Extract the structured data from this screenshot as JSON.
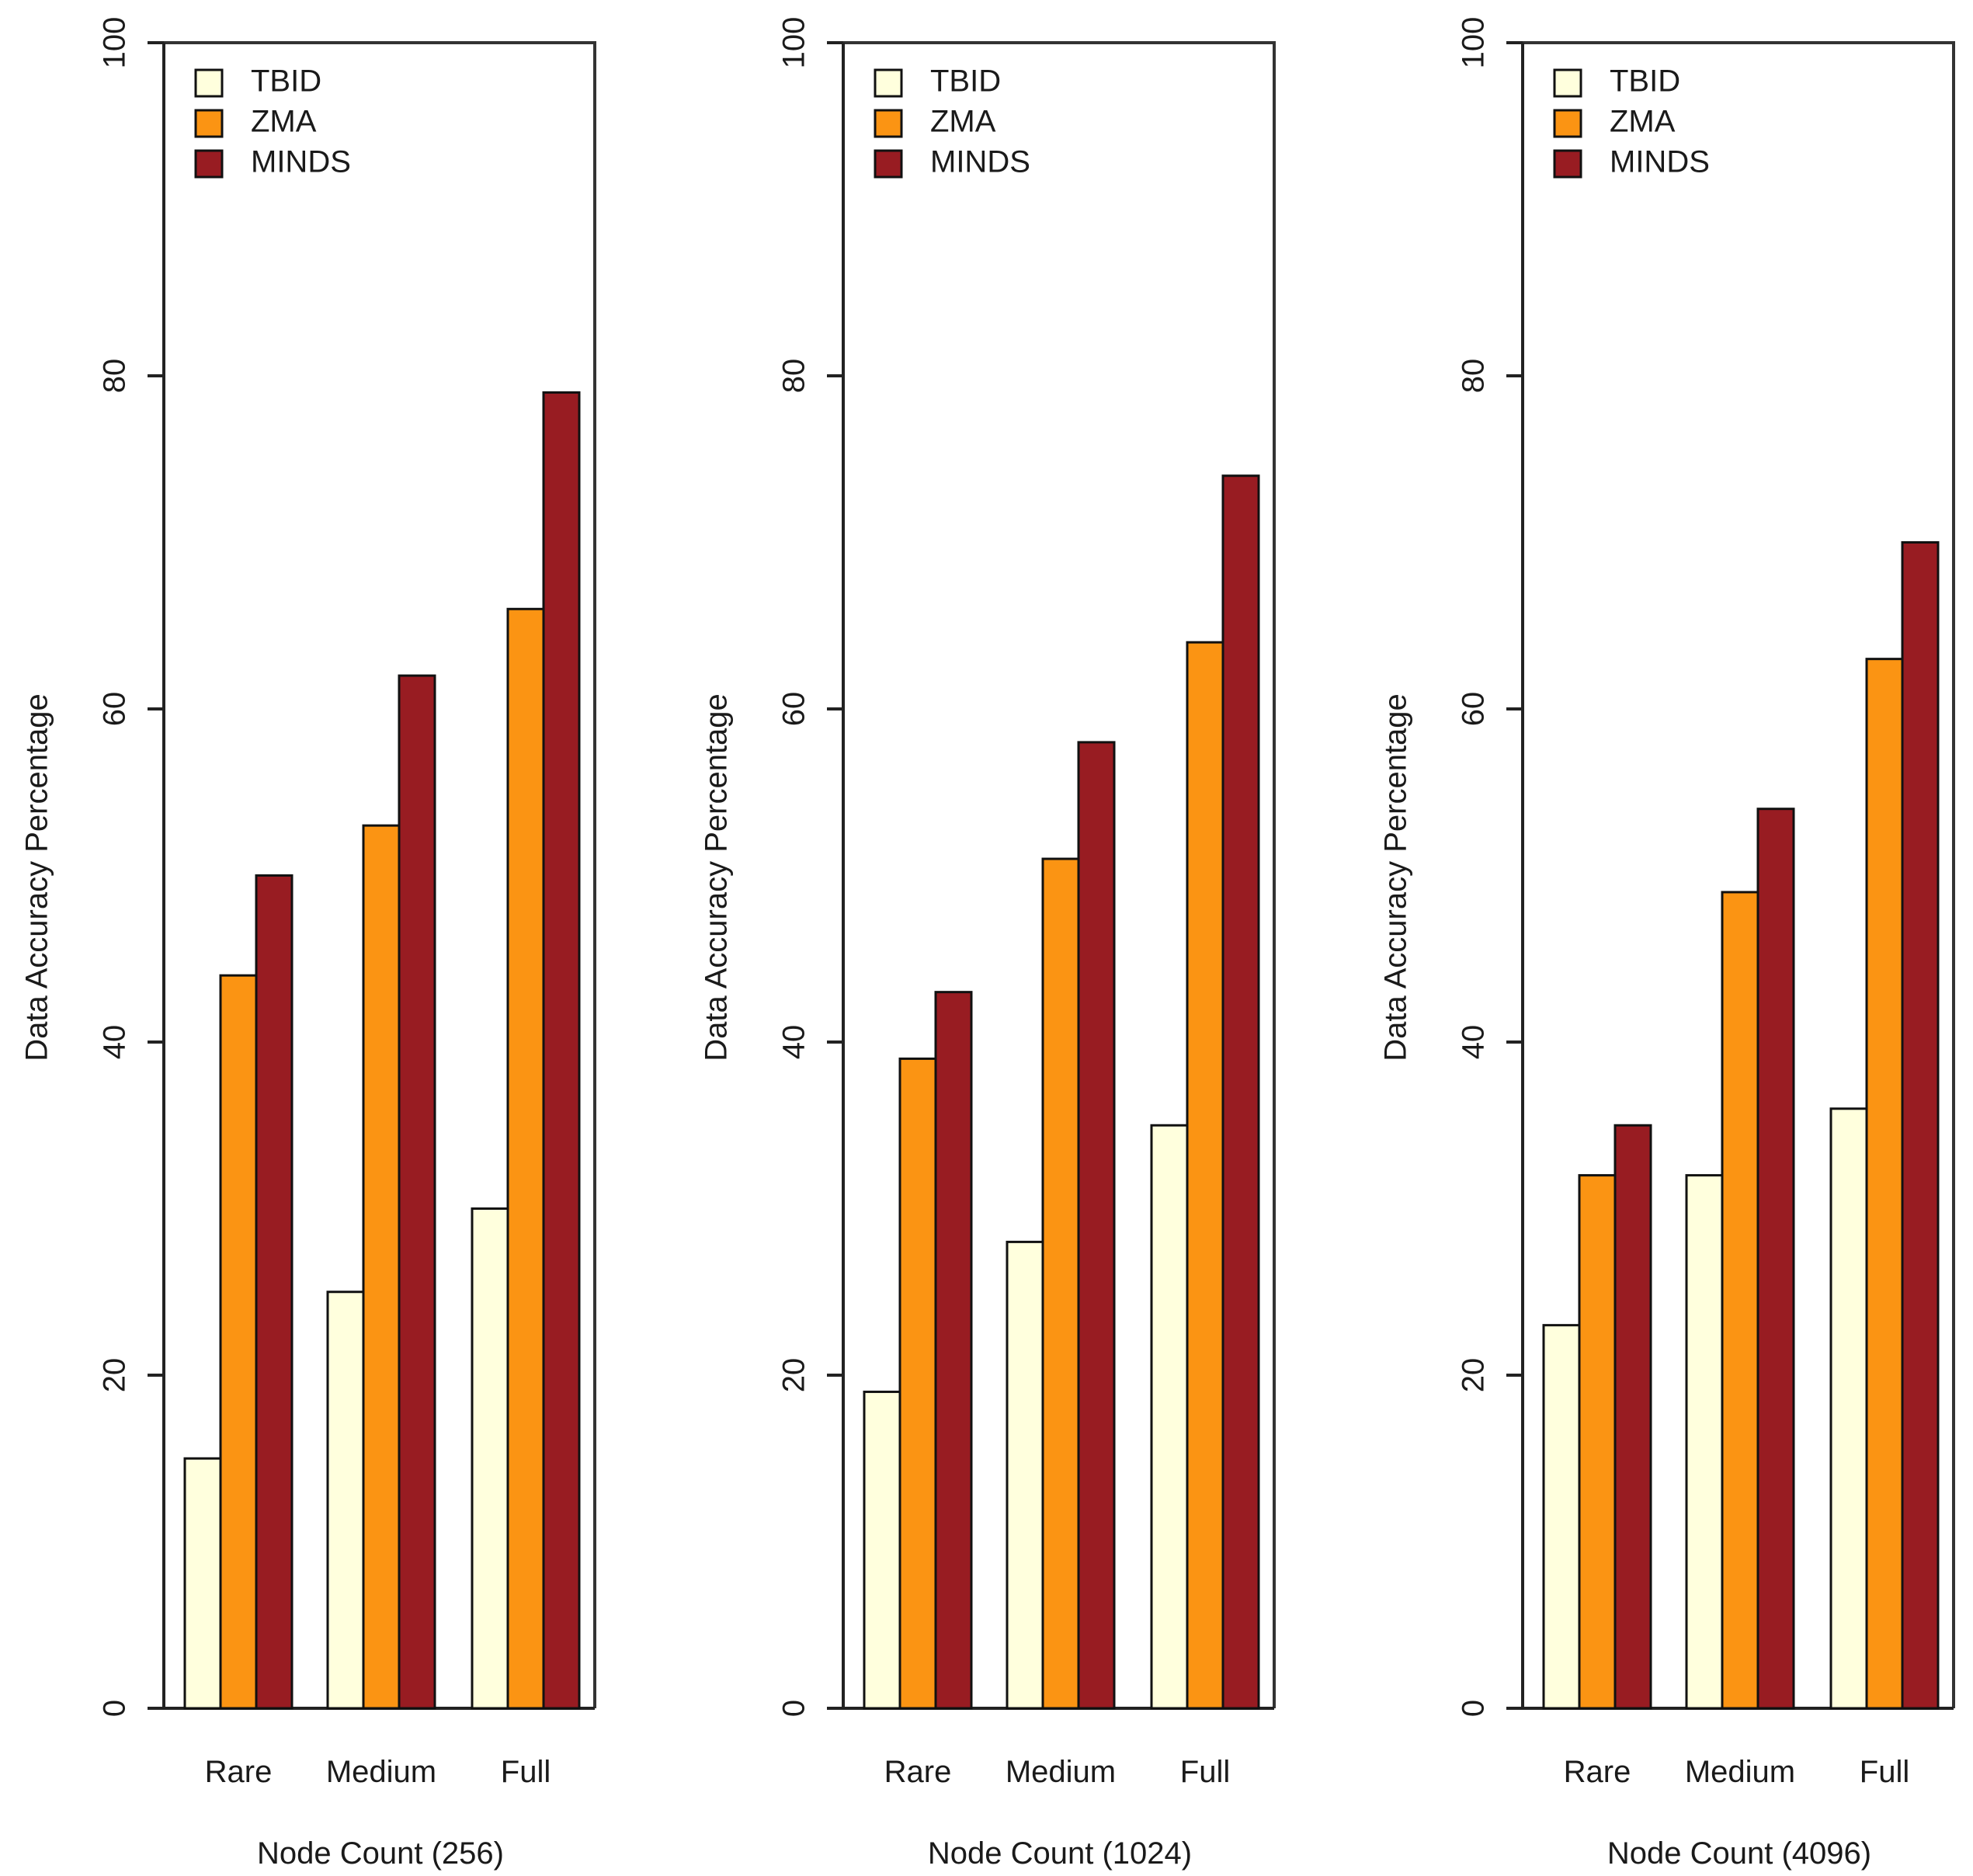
{
  "chart_data": [
    {
      "type": "bar",
      "title": "",
      "xlabel": "Node Count (256)",
      "ylabel": "Data Accuracy Percentage",
      "categories": [
        "Rare",
        "Medium",
        "Full"
      ],
      "series": [
        {
          "name": "TBID",
          "values": [
            15,
            25,
            30
          ]
        },
        {
          "name": "ZMA",
          "values": [
            44,
            53,
            66
          ]
        },
        {
          "name": "MINDS",
          "values": [
            50,
            62,
            79
          ]
        }
      ],
      "ylim": [
        0,
        100
      ],
      "yticks": [
        "0",
        "20",
        "40",
        "60",
        "80",
        "100"
      ],
      "grid": false,
      "legend": "top-left"
    },
    {
      "type": "bar",
      "title": "",
      "xlabel": "Node Count (1024)",
      "ylabel": "Data Accuracy Percentage",
      "categories": [
        "Rare",
        "Medium",
        "Full"
      ],
      "series": [
        {
          "name": "TBID",
          "values": [
            19,
            28,
            35
          ]
        },
        {
          "name": "ZMA",
          "values": [
            39,
            51,
            64
          ]
        },
        {
          "name": "MINDS",
          "values": [
            43,
            58,
            74
          ]
        }
      ],
      "ylim": [
        0,
        100
      ],
      "yticks": [
        "0",
        "20",
        "40",
        "60",
        "80",
        "100"
      ],
      "grid": false,
      "legend": "top-left"
    },
    {
      "type": "bar",
      "title": "",
      "xlabel": "Node Count (4096)",
      "ylabel": "Data Accuracy Percentage",
      "categories": [
        "Rare",
        "Medium",
        "Full"
      ],
      "series": [
        {
          "name": "TBID",
          "values": [
            23,
            32,
            36
          ]
        },
        {
          "name": "ZMA",
          "values": [
            32,
            49,
            63
          ]
        },
        {
          "name": "MINDS",
          "values": [
            35,
            54,
            70
          ]
        }
      ],
      "ylim": [
        0,
        100
      ],
      "yticks": [
        "0",
        "20",
        "40",
        "60",
        "80",
        "100"
      ],
      "grid": false,
      "legend": "top-left"
    }
  ],
  "series_colors": {
    "TBID": "#FFFFDD",
    "ZMA": "#FB9413",
    "MINDS": "#981C22"
  }
}
